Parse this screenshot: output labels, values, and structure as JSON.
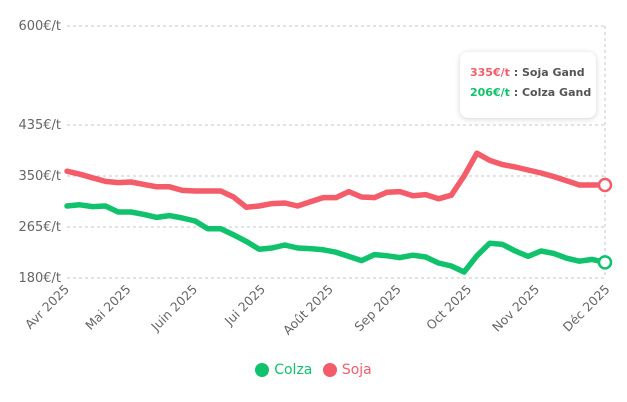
{
  "chart_data": {
    "type": "line",
    "title": "",
    "xlabel": "",
    "ylabel": "",
    "ylim": [
      180,
      600
    ],
    "yticks": [
      "180€/t",
      "265€/t",
      "350€/t",
      "435€/t",
      "600€/t"
    ],
    "ytick_values": [
      180,
      265,
      350,
      435,
      600
    ],
    "x_labels": [
      "Avr 2025",
      "Mai 2025",
      "Juin 2025",
      "Jui 2025",
      "Août 2025",
      "Sep 2025",
      "Oct 2025",
      "Nov 2025",
      "Déc 2025"
    ],
    "x_label_positions": [
      0,
      4.8,
      10,
      15.3,
      20.6,
      25.9,
      31.4,
      36.7,
      42.2
    ],
    "x_count": 43,
    "grid": true,
    "legend_position": "bottom",
    "series": [
      {
        "name": "Colza",
        "color": "#11c26d",
        "values": [
          300,
          302,
          299,
          300,
          290,
          290,
          286,
          281,
          284,
          280,
          275,
          262,
          262,
          252,
          241,
          228,
          230,
          235,
          230,
          229,
          227,
          223,
          216,
          209,
          219,
          217,
          214,
          218,
          215,
          205,
          200,
          190,
          217,
          238,
          236,
          225,
          216,
          225,
          221,
          213,
          208,
          211,
          206
        ]
      },
      {
        "name": "Soja",
        "color": "#f45c6a",
        "values": [
          358,
          353,
          347,
          341,
          339,
          340,
          336,
          332,
          332,
          326,
          325,
          325,
          325,
          315,
          298,
          300,
          304,
          305,
          300,
          307,
          314,
          314,
          324,
          315,
          314,
          323,
          324,
          317,
          319,
          312,
          318,
          350,
          388,
          376,
          369,
          365,
          360,
          355,
          349,
          342,
          335,
          335,
          335
        ]
      }
    ]
  },
  "tooltip": {
    "soja_value": "335€/t",
    "soja_label": ": Soja Gand",
    "colza_value": "206€/t",
    "colza_label": ": Colza Gand"
  },
  "legend": {
    "colza": "Colza",
    "soja": "Soja"
  }
}
